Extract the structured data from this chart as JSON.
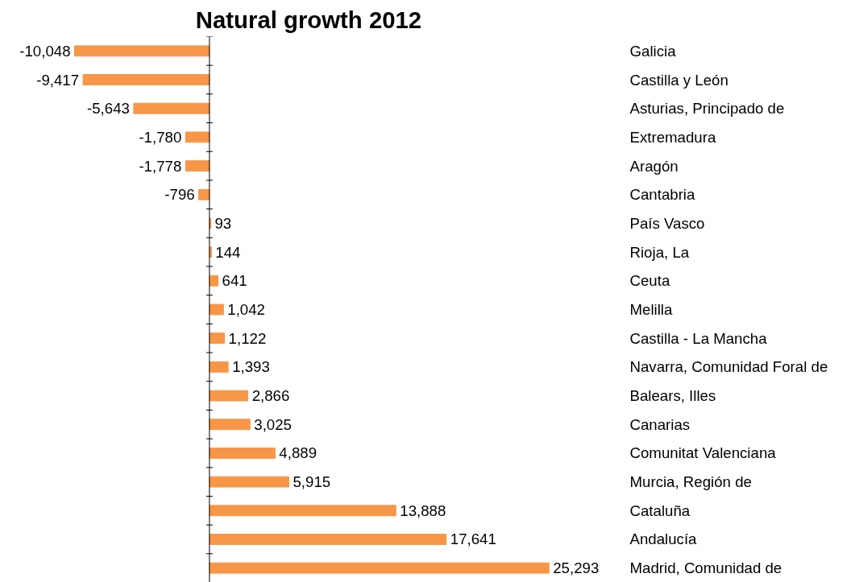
{
  "chart_data": {
    "type": "bar",
    "orientation": "horizontal",
    "title": "Natural growth 2012",
    "color": "#f79646",
    "value_labels": [
      "-10,048",
      "-9,417",
      "-5,643",
      "-1,780",
      "-1,778",
      "-796",
      "93",
      "144",
      "641",
      "1,042",
      "1,122",
      "1,393",
      "2,866",
      "3,025",
      "4,889",
      "5,915",
      "13,888",
      "17,641",
      "25,293"
    ],
    "categories": [
      "Galicia",
      "Castilla y León",
      "Asturias, Principado de",
      "Extremadura",
      "Aragón",
      "Cantabria",
      "País Vasco",
      "Rioja, La",
      "Ceuta",
      "Melilla",
      "Castilla - La Mancha",
      "Navarra, Comunidad Foral de",
      "Balears, Illes",
      "Canarias",
      "Comunitat Valenciana",
      "Murcia, Región de",
      "Cataluña",
      "Andalucía",
      "Madrid, Comunidad de"
    ],
    "values": [
      -10048,
      -9417,
      -5643,
      -1780,
      -1778,
      -796,
      93,
      144,
      641,
      1042,
      1122,
      1393,
      2866,
      3025,
      4889,
      5915,
      13888,
      17641,
      25293
    ]
  }
}
